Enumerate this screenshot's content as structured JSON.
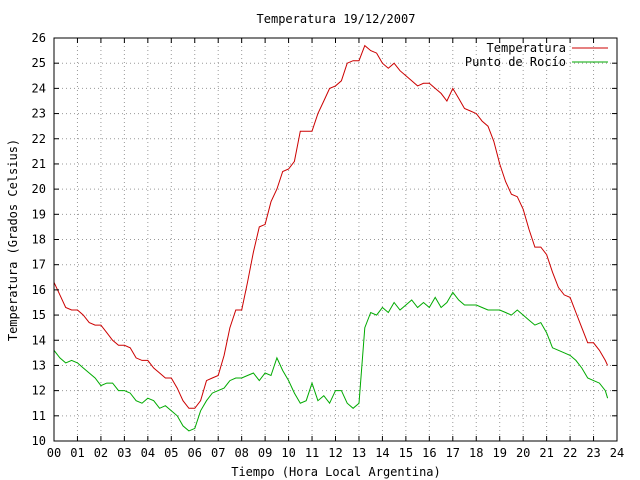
{
  "chart_data": {
    "type": "line",
    "title": "Temperatura 19/12/2007",
    "xlabel": "Tiempo (Hora Local Argentina)",
    "ylabel": "Temperatura (Grados Celsius)",
    "xlim": [
      0,
      24
    ],
    "ylim": [
      10,
      26
    ],
    "x_ticks": [
      "00",
      "01",
      "02",
      "03",
      "04",
      "05",
      "06",
      "07",
      "08",
      "09",
      "10",
      "11",
      "12",
      "13",
      "14",
      "15",
      "16",
      "17",
      "18",
      "19",
      "20",
      "21",
      "22",
      "23",
      "24"
    ],
    "y_ticks": [
      "10",
      "11",
      "12",
      "13",
      "14",
      "15",
      "16",
      "17",
      "18",
      "19",
      "20",
      "21",
      "22",
      "23",
      "24",
      "25",
      "26"
    ],
    "grid": true,
    "legend_position": "top-right",
    "series": [
      {
        "name": "Temperatura",
        "color": "#cc0000",
        "x": [
          0.0,
          0.25,
          0.5,
          0.75,
          1.0,
          1.25,
          1.5,
          1.75,
          2.0,
          2.25,
          2.5,
          2.75,
          3.0,
          3.25,
          3.5,
          3.75,
          4.0,
          4.25,
          4.5,
          4.75,
          5.0,
          5.25,
          5.5,
          5.75,
          6.0,
          6.25,
          6.5,
          6.75,
          7.0,
          7.25,
          7.5,
          7.75,
          8.0,
          8.25,
          8.5,
          8.75,
          9.0,
          9.25,
          9.5,
          9.75,
          10.0,
          10.25,
          10.5,
          10.75,
          11.0,
          11.25,
          11.5,
          11.75,
          12.0,
          12.25,
          12.5,
          12.75,
          13.0,
          13.25,
          13.5,
          13.75,
          14.0,
          14.25,
          14.5,
          14.75,
          15.0,
          15.25,
          15.5,
          15.75,
          16.0,
          16.25,
          16.5,
          16.75,
          17.0,
          17.25,
          17.5,
          17.75,
          18.0,
          18.25,
          18.5,
          18.75,
          19.0,
          19.25,
          19.5,
          19.75,
          20.0,
          20.25,
          20.5,
          20.75,
          21.0,
          21.25,
          21.5,
          21.75,
          22.0,
          22.25,
          22.5,
          22.75,
          23.0,
          23.25,
          23.5,
          23.6
        ],
        "y": [
          16.3,
          15.8,
          15.3,
          15.2,
          15.2,
          15.0,
          14.7,
          14.6,
          14.6,
          14.3,
          14.0,
          13.8,
          13.8,
          13.7,
          13.3,
          13.2,
          13.2,
          12.9,
          12.7,
          12.5,
          12.5,
          12.1,
          11.6,
          11.3,
          11.3,
          11.6,
          12.4,
          12.5,
          12.6,
          13.4,
          14.5,
          15.2,
          15.2,
          16.3,
          17.5,
          18.5,
          18.6,
          19.5,
          20.0,
          20.7,
          20.8,
          21.1,
          22.3,
          22.3,
          22.3,
          23.0,
          23.5,
          24.0,
          24.1,
          24.3,
          25.0,
          25.1,
          25.1,
          25.7,
          25.5,
          25.4,
          25.0,
          24.8,
          25.0,
          24.7,
          24.5,
          24.3,
          24.1,
          24.2,
          24.2,
          24.0,
          23.8,
          23.5,
          24.0,
          23.6,
          23.2,
          23.1,
          23.0,
          22.7,
          22.5,
          21.9,
          21.0,
          20.3,
          19.8,
          19.7,
          19.2,
          18.4,
          17.7,
          17.7,
          17.4,
          16.7,
          16.1,
          15.8,
          15.7,
          15.1,
          14.5,
          13.9,
          13.9,
          13.6,
          13.2,
          13.0
        ]
      },
      {
        "name": "Punto de Rocío",
        "color": "#00aa00",
        "x": [
          0.0,
          0.25,
          0.5,
          0.75,
          1.0,
          1.25,
          1.5,
          1.75,
          2.0,
          2.25,
          2.5,
          2.75,
          3.0,
          3.25,
          3.5,
          3.75,
          4.0,
          4.25,
          4.5,
          4.75,
          5.0,
          5.25,
          5.5,
          5.75,
          6.0,
          6.25,
          6.5,
          6.75,
          7.0,
          7.25,
          7.5,
          7.75,
          8.0,
          8.25,
          8.5,
          8.75,
          9.0,
          9.25,
          9.5,
          9.75,
          10.0,
          10.25,
          10.5,
          10.75,
          11.0,
          11.25,
          11.5,
          11.75,
          12.0,
          12.25,
          12.5,
          12.75,
          13.0,
          13.25,
          13.5,
          13.75,
          14.0,
          14.25,
          14.5,
          14.75,
          15.0,
          15.25,
          15.5,
          15.75,
          16.0,
          16.25,
          16.5,
          16.75,
          17.0,
          17.25,
          17.5,
          17.75,
          18.0,
          18.25,
          18.5,
          18.75,
          19.0,
          19.25,
          19.5,
          19.75,
          20.0,
          20.25,
          20.5,
          20.75,
          21.0,
          21.25,
          21.5,
          21.75,
          22.0,
          22.25,
          22.5,
          22.75,
          23.0,
          23.25,
          23.5,
          23.6
        ],
        "y": [
          13.6,
          13.3,
          13.1,
          13.2,
          13.1,
          12.9,
          12.7,
          12.5,
          12.2,
          12.3,
          12.3,
          12.0,
          12.0,
          11.9,
          11.6,
          11.5,
          11.7,
          11.6,
          11.3,
          11.4,
          11.2,
          11.0,
          10.6,
          10.4,
          10.5,
          11.2,
          11.6,
          11.9,
          12.0,
          12.1,
          12.4,
          12.5,
          12.5,
          12.6,
          12.7,
          12.4,
          12.7,
          12.6,
          13.3,
          12.8,
          12.4,
          11.9,
          11.5,
          11.6,
          12.3,
          11.6,
          11.8,
          11.5,
          12.0,
          12.0,
          11.5,
          11.3,
          11.5,
          14.5,
          15.1,
          15.0,
          15.3,
          15.1,
          15.5,
          15.2,
          15.4,
          15.6,
          15.3,
          15.5,
          15.3,
          15.7,
          15.3,
          15.5,
          15.9,
          15.6,
          15.4,
          15.4,
          15.4,
          15.3,
          15.2,
          15.2,
          15.2,
          15.1,
          15.0,
          15.2,
          15.0,
          14.8,
          14.6,
          14.7,
          14.3,
          13.7,
          13.6,
          13.5,
          13.4,
          13.2,
          12.9,
          12.5,
          12.4,
          12.3,
          12.0,
          11.7
        ]
      }
    ]
  }
}
